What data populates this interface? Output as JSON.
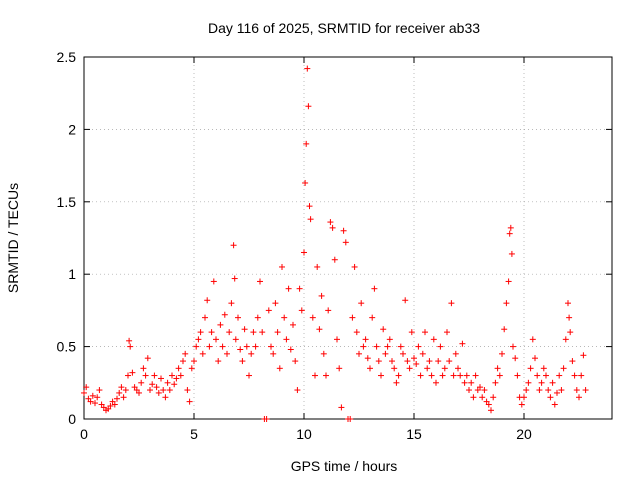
{
  "chart_data": {
    "type": "scatter",
    "title": "Day 116 of 2025, SRMTID for receiver ab33",
    "xlabel": "GPS time / hours",
    "ylabel": "SRMTID / TECUs",
    "xlim": [
      0,
      24
    ],
    "ylim": [
      0,
      2.5
    ],
    "xticks": [
      0,
      5,
      10,
      15,
      20
    ],
    "xtick_labels": [
      "0",
      "5",
      "10",
      "15",
      "20"
    ],
    "yticks": [
      0,
      0.5,
      1,
      1.5,
      2,
      2.5
    ],
    "ytick_labels": [
      "0",
      "0.5",
      "1",
      "1.5",
      "2",
      "2.5"
    ],
    "grid": true,
    "marker": "+",
    "color": "#ff0000",
    "series": [
      {
        "name": "SRMTID",
        "points": [
          [
            0.0,
            0.18
          ],
          [
            0.1,
            0.22
          ],
          [
            0.2,
            0.14
          ],
          [
            0.3,
            0.12
          ],
          [
            0.4,
            0.16
          ],
          [
            0.5,
            0.11
          ],
          [
            0.6,
            0.15
          ],
          [
            0.7,
            0.2
          ],
          [
            0.8,
            0.1
          ],
          [
            0.9,
            0.08
          ],
          [
            1.0,
            0.06
          ],
          [
            1.1,
            0.07
          ],
          [
            1.2,
            0.09
          ],
          [
            1.3,
            0.12
          ],
          [
            1.4,
            0.1
          ],
          [
            1.5,
            0.14
          ],
          [
            1.6,
            0.18
          ],
          [
            1.7,
            0.22
          ],
          [
            1.8,
            0.15
          ],
          [
            1.9,
            0.2
          ],
          [
            2.0,
            0.3
          ],
          [
            2.05,
            0.54
          ],
          [
            2.1,
            0.5
          ],
          [
            2.2,
            0.32
          ],
          [
            2.3,
            0.22
          ],
          [
            2.4,
            0.2
          ],
          [
            2.5,
            0.18
          ],
          [
            2.6,
            0.25
          ],
          [
            2.7,
            0.35
          ],
          [
            2.8,
            0.3
          ],
          [
            2.9,
            0.42
          ],
          [
            3.0,
            0.2
          ],
          [
            3.1,
            0.24
          ],
          [
            3.2,
            0.3
          ],
          [
            3.3,
            0.22
          ],
          [
            3.4,
            0.18
          ],
          [
            3.5,
            0.28
          ],
          [
            3.6,
            0.2
          ],
          [
            3.7,
            0.15
          ],
          [
            3.8,
            0.25
          ],
          [
            3.9,
            0.2
          ],
          [
            4.0,
            0.3
          ],
          [
            4.1,
            0.24
          ],
          [
            4.2,
            0.28
          ],
          [
            4.3,
            0.35
          ],
          [
            4.4,
            0.3
          ],
          [
            4.5,
            0.4
          ],
          [
            4.6,
            0.45
          ],
          [
            4.7,
            0.2
          ],
          [
            4.8,
            0.12
          ],
          [
            4.9,
            0.35
          ],
          [
            5.0,
            0.4
          ],
          [
            5.1,
            0.5
          ],
          [
            5.2,
            0.55
          ],
          [
            5.3,
            0.6
          ],
          [
            5.4,
            0.45
          ],
          [
            5.5,
            0.7
          ],
          [
            5.6,
            0.82
          ],
          [
            5.7,
            0.5
          ],
          [
            5.8,
            0.6
          ],
          [
            5.9,
            0.95
          ],
          [
            6.0,
            0.55
          ],
          [
            6.1,
            0.4
          ],
          [
            6.2,
            0.65
          ],
          [
            6.3,
            0.5
          ],
          [
            6.4,
            0.72
          ],
          [
            6.5,
            0.45
          ],
          [
            6.6,
            0.6
          ],
          [
            6.7,
            0.8
          ],
          [
            6.8,
            1.2
          ],
          [
            6.85,
            0.97
          ],
          [
            6.9,
            0.55
          ],
          [
            7.0,
            0.7
          ],
          [
            7.1,
            0.48
          ],
          [
            7.2,
            0.4
          ],
          [
            7.3,
            0.62
          ],
          [
            7.4,
            0.5
          ],
          [
            7.5,
            0.3
          ],
          [
            7.6,
            0.45
          ],
          [
            7.7,
            0.6
          ],
          [
            7.8,
            0.5
          ],
          [
            7.9,
            0.7
          ],
          [
            8.0,
            0.95
          ],
          [
            8.1,
            0.6
          ],
          [
            8.2,
            0.0
          ],
          [
            8.3,
            0.0
          ],
          [
            8.4,
            0.75
          ],
          [
            8.5,
            0.5
          ],
          [
            8.6,
            0.45
          ],
          [
            8.7,
            0.8
          ],
          [
            8.8,
            0.6
          ],
          [
            8.9,
            0.35
          ],
          [
            9.0,
            1.05
          ],
          [
            9.1,
            0.7
          ],
          [
            9.2,
            0.55
          ],
          [
            9.3,
            0.9
          ],
          [
            9.4,
            0.48
          ],
          [
            9.5,
            0.65
          ],
          [
            9.6,
            0.4
          ],
          [
            9.7,
            0.2
          ],
          [
            9.8,
            0.9
          ],
          [
            9.9,
            0.75
          ],
          [
            10.0,
            1.15
          ],
          [
            10.05,
            1.63
          ],
          [
            10.1,
            1.9
          ],
          [
            10.15,
            2.42
          ],
          [
            10.2,
            2.16
          ],
          [
            10.25,
            1.47
          ],
          [
            10.3,
            1.38
          ],
          [
            10.4,
            0.7
          ],
          [
            10.5,
            0.3
          ],
          [
            10.6,
            1.05
          ],
          [
            10.7,
            0.62
          ],
          [
            10.8,
            0.85
          ],
          [
            10.9,
            0.45
          ],
          [
            11.0,
            0.3
          ],
          [
            11.1,
            0.75
          ],
          [
            11.2,
            1.36
          ],
          [
            11.3,
            1.32
          ],
          [
            11.4,
            1.1
          ],
          [
            11.5,
            0.55
          ],
          [
            11.6,
            0.35
          ],
          [
            11.7,
            0.08
          ],
          [
            11.8,
            1.3
          ],
          [
            11.9,
            1.22
          ],
          [
            12.0,
            0.0
          ],
          [
            12.1,
            0.0
          ],
          [
            12.2,
            0.7
          ],
          [
            12.3,
            1.05
          ],
          [
            12.4,
            0.6
          ],
          [
            12.5,
            0.45
          ],
          [
            12.6,
            0.8
          ],
          [
            12.7,
            0.5
          ],
          [
            12.8,
            0.55
          ],
          [
            12.9,
            0.42
          ],
          [
            13.0,
            0.35
          ],
          [
            13.1,
            0.7
          ],
          [
            13.2,
            0.9
          ],
          [
            13.3,
            0.5
          ],
          [
            13.4,
            0.4
          ],
          [
            13.5,
            0.3
          ],
          [
            13.6,
            0.62
          ],
          [
            13.7,
            0.45
          ],
          [
            13.8,
            0.5
          ],
          [
            13.9,
            0.55
          ],
          [
            14.0,
            0.4
          ],
          [
            14.1,
            0.35
          ],
          [
            14.2,
            0.25
          ],
          [
            14.3,
            0.3
          ],
          [
            14.4,
            0.5
          ],
          [
            14.5,
            0.45
          ],
          [
            14.6,
            0.82
          ],
          [
            14.7,
            0.4
          ],
          [
            14.8,
            0.35
          ],
          [
            14.9,
            0.6
          ],
          [
            15.0,
            0.42
          ],
          [
            15.1,
            0.38
          ],
          [
            15.2,
            0.5
          ],
          [
            15.3,
            0.3
          ],
          [
            15.4,
            0.45
          ],
          [
            15.5,
            0.6
          ],
          [
            15.6,
            0.35
          ],
          [
            15.7,
            0.4
          ],
          [
            15.8,
            0.3
          ],
          [
            15.9,
            0.55
          ],
          [
            16.0,
            0.25
          ],
          [
            16.1,
            0.4
          ],
          [
            16.2,
            0.5
          ],
          [
            16.3,
            0.3
          ],
          [
            16.4,
            0.35
          ],
          [
            16.5,
            0.6
          ],
          [
            16.6,
            0.4
          ],
          [
            16.7,
            0.8
          ],
          [
            16.8,
            0.3
          ],
          [
            16.9,
            0.45
          ],
          [
            17.0,
            0.35
          ],
          [
            17.1,
            0.3
          ],
          [
            17.2,
            0.52
          ],
          [
            17.3,
            0.25
          ],
          [
            17.4,
            0.3
          ],
          [
            17.5,
            0.2
          ],
          [
            17.6,
            0.25
          ],
          [
            17.7,
            0.15
          ],
          [
            17.8,
            0.3
          ],
          [
            17.9,
            0.2
          ],
          [
            18.0,
            0.22
          ],
          [
            18.1,
            0.15
          ],
          [
            18.2,
            0.2
          ],
          [
            18.3,
            0.12
          ],
          [
            18.4,
            0.1
          ],
          [
            18.5,
            0.06
          ],
          [
            18.6,
            0.15
          ],
          [
            18.7,
            0.25
          ],
          [
            18.8,
            0.35
          ],
          [
            18.9,
            0.3
          ],
          [
            19.0,
            0.45
          ],
          [
            19.1,
            0.62
          ],
          [
            19.2,
            0.8
          ],
          [
            19.3,
            0.95
          ],
          [
            19.35,
            1.28
          ],
          [
            19.4,
            1.32
          ],
          [
            19.45,
            1.14
          ],
          [
            19.5,
            0.5
          ],
          [
            19.6,
            0.42
          ],
          [
            19.7,
            0.3
          ],
          [
            19.8,
            0.15
          ],
          [
            19.9,
            0.1
          ],
          [
            20.0,
            0.15
          ],
          [
            20.1,
            0.2
          ],
          [
            20.2,
            0.25
          ],
          [
            20.3,
            0.35
          ],
          [
            20.4,
            0.55
          ],
          [
            20.5,
            0.42
          ],
          [
            20.6,
            0.3
          ],
          [
            20.7,
            0.2
          ],
          [
            20.8,
            0.25
          ],
          [
            20.9,
            0.35
          ],
          [
            21.0,
            0.3
          ],
          [
            21.1,
            0.2
          ],
          [
            21.2,
            0.15
          ],
          [
            21.3,
            0.25
          ],
          [
            21.4,
            0.1
          ],
          [
            21.5,
            0.18
          ],
          [
            21.6,
            0.3
          ],
          [
            21.7,
            0.2
          ],
          [
            21.8,
            0.35
          ],
          [
            21.9,
            0.55
          ],
          [
            22.0,
            0.8
          ],
          [
            22.05,
            0.7
          ],
          [
            22.1,
            0.6
          ],
          [
            22.2,
            0.4
          ],
          [
            22.3,
            0.3
          ],
          [
            22.4,
            0.2
          ],
          [
            22.5,
            0.15
          ],
          [
            22.6,
            0.3
          ],
          [
            22.7,
            0.44
          ],
          [
            22.8,
            0.2
          ]
        ]
      }
    ]
  }
}
